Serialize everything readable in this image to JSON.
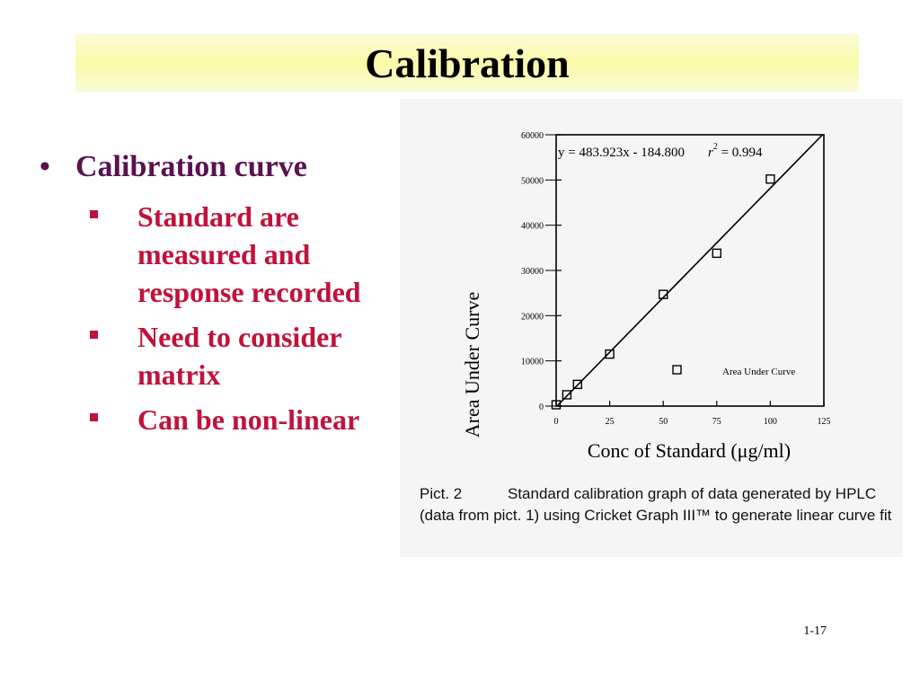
{
  "slide": {
    "title": "Calibration",
    "bullet": "Calibration curve",
    "bullet_marker": "•",
    "sub_items": [
      "Standard are measured and response recorded",
      "Need to consider matrix",
      "Can be non-linear"
    ],
    "slide_number": "1-17"
  },
  "figure": {
    "caption_label": "Pict. 2",
    "caption_text": "Standard calibration graph of data generated by HPLC (data from pict. 1) using Cricket Graph III™ to generate linear curve fit"
  },
  "chart_data": {
    "type": "scatter",
    "title": "",
    "xlabel": "Conc of Standard (μg/ml)",
    "ylabel": "Area Under Curve",
    "xlim": [
      0,
      125
    ],
    "ylim": [
      0,
      60000
    ],
    "x_ticks": [
      0,
      25,
      50,
      75,
      100,
      125
    ],
    "y_ticks": [
      0,
      10000,
      20000,
      30000,
      40000,
      50000,
      60000
    ],
    "series": [
      {
        "name": "Area Under Curve",
        "x": [
          0,
          5,
          10,
          25,
          50,
          75,
          100
        ],
        "y": [
          300,
          2500,
          4800,
          11500,
          24700,
          33800,
          50200
        ]
      }
    ],
    "fit_line": {
      "slope": 483.923,
      "intercept": -184.8
    },
    "equation": "y = 483.923x - 184.800",
    "r2_label": "r",
    "r2_exp": "2",
    "r2_value": " = 0.994",
    "legend_position": "lower-right",
    "legend_marker": "square",
    "grid": false
  }
}
